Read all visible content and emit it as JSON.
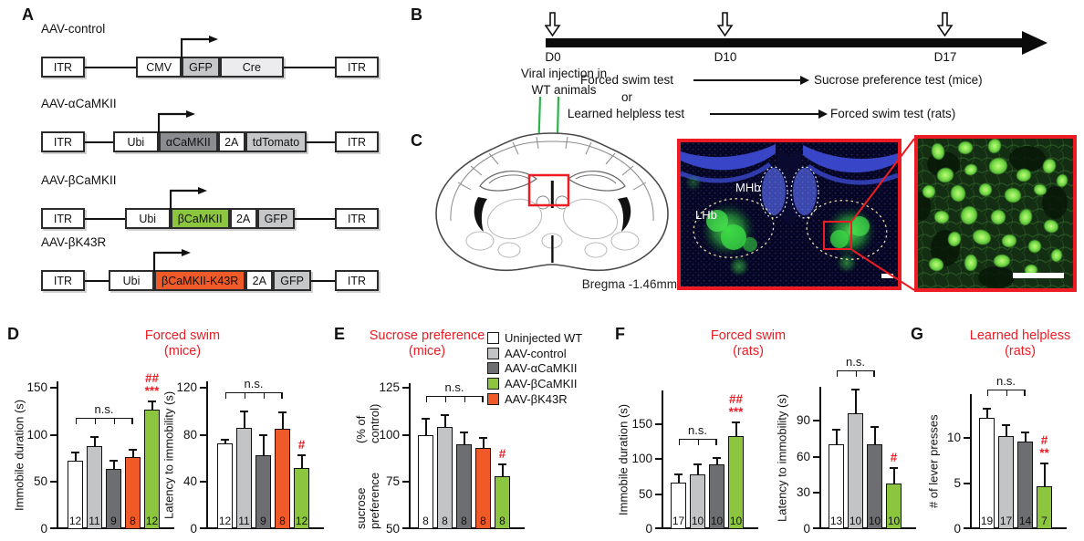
{
  "colors": {
    "white_bar": "#ffffff",
    "light_gray": "#c3c4c6",
    "dark_gray": "#6d6e71",
    "green": "#8cc63f",
    "orange": "#f05a28",
    "accent_red": "#ed1c24",
    "injection_green": "#2eb34a"
  },
  "panels": {
    "A": {
      "label": "A",
      "constructs": [
        {
          "name": "AAV-control",
          "segments": [
            {
              "label": "ITR",
              "style": "white"
            },
            {
              "gap": true
            },
            {
              "label": "CMV",
              "style": "white"
            },
            {
              "label": "GFP",
              "style": "gray",
              "gene": true
            },
            {
              "label": "Cre",
              "style": "lighter",
              "wide": true
            },
            {
              "gap": true
            },
            {
              "label": "ITR",
              "style": "white"
            }
          ]
        },
        {
          "name": "AAV-αCaMKII",
          "segments": [
            {
              "label": "ITR",
              "style": "white"
            },
            {
              "gap": true
            },
            {
              "label": "Ubi",
              "style": "white"
            },
            {
              "label": "αCaMKII",
              "style": "dark",
              "gene": true
            },
            {
              "label": "2A",
              "style": "white"
            },
            {
              "label": "tdTomato",
              "style": "gray"
            },
            {
              "gap": true
            },
            {
              "label": "ITR",
              "style": "white"
            }
          ]
        },
        {
          "name": "AAV-βCaMKII",
          "segments": [
            {
              "label": "ITR",
              "style": "white"
            },
            {
              "gap": true
            },
            {
              "label": "Ubi",
              "style": "white"
            },
            {
              "label": "βCaMKII",
              "style": "green",
              "gene": true
            },
            {
              "label": "2A",
              "style": "white"
            },
            {
              "label": "GFP",
              "style": "gray"
            },
            {
              "gap": true
            },
            {
              "label": "ITR",
              "style": "white"
            }
          ]
        },
        {
          "name": "AAV-βK43R",
          "segments": [
            {
              "label": "ITR",
              "style": "white"
            },
            {
              "gap": true
            },
            {
              "label": "Ubi",
              "style": "white"
            },
            {
              "label": "βCaMKII-K43R",
              "style": "orange",
              "gene": true
            },
            {
              "label": "2A",
              "style": "white"
            },
            {
              "label": "GFP",
              "style": "gray"
            },
            {
              "gap": true
            },
            {
              "label": "ITR",
              "style": "white"
            }
          ]
        }
      ]
    },
    "B": {
      "label": "B",
      "days": [
        "D0",
        "D10",
        "D17"
      ],
      "injection": [
        "Viral injection in",
        "WT animals"
      ],
      "or": "or",
      "flows": [
        {
          "from": "Forced swim test",
          "to": "Sucrose preference test (mice)"
        },
        {
          "from": "Learned helpless test",
          "to": "Forced swim test (rats)"
        }
      ]
    },
    "C": {
      "label": "C",
      "bregma": "Bregma -1.46mm",
      "regions": {
        "mhb": "MHb",
        "lhb": "LHb"
      }
    },
    "D": {
      "label": "D",
      "title": [
        "Forced swim",
        "(mice)"
      ]
    },
    "E": {
      "label": "E",
      "title": [
        "Sucrose preference",
        "(mice)"
      ]
    },
    "F": {
      "label": "F",
      "title": [
        "Forced swim",
        "(rats)"
      ]
    },
    "G": {
      "label": "G",
      "title": [
        "Learned helpless",
        "(rats)"
      ]
    }
  },
  "legend": {
    "items": [
      {
        "label": "Uninjected WT",
        "color": "#ffffff"
      },
      {
        "label": "AAV-control",
        "color": "#c3c4c6"
      },
      {
        "label": "AAV-αCaMKII",
        "color": "#6d6e71"
      },
      {
        "label": "AAV-βCaMKII",
        "color": "#8cc63f"
      },
      {
        "label": "AAV-βK43R",
        "color": "#f05a28"
      }
    ]
  },
  "chart_data": [
    {
      "id": "forced-swim-mice-immobile",
      "panel": "D",
      "type": "bar",
      "title": "Forced swim (mice)",
      "ylabel": [
        "Immobile duration (s)"
      ],
      "yticks": [
        0,
        50,
        100,
        150
      ],
      "ylim": [
        0,
        155
      ],
      "ybase": 0,
      "categories": [
        "Uninjected WT",
        "AAV-control",
        "AAV-αCaMKII",
        "AAV-βK43R",
        "AAV-βCaMKII"
      ],
      "values": [
        73,
        88,
        64,
        76,
        127
      ],
      "errors": [
        7,
        9,
        8,
        7,
        8
      ],
      "n": [
        12,
        11,
        9,
        8,
        12
      ],
      "bar_colors": [
        "#ffffff",
        "#c3c4c6",
        "#6d6e71",
        "#f05a28",
        "#8cc63f"
      ],
      "ns_bracket": {
        "from": 0,
        "to": 3,
        "label": "n.s."
      },
      "sig": {
        "bar": 4,
        "labels": [
          "##",
          "***"
        ]
      }
    },
    {
      "id": "forced-swim-mice-latency",
      "panel": "D",
      "type": "bar",
      "title": "Forced swim (mice)",
      "ylabel": [
        "Latency to immobility (s)"
      ],
      "yticks": [
        0,
        40,
        80,
        120
      ],
      "ylim": [
        0,
        120
      ],
      "ybase": 0,
      "categories": [
        "Uninjected WT",
        "AAV-control",
        "AAV-αCaMKII",
        "AAV-βK43R",
        "AAV-βCaMKII"
      ],
      "values": [
        73,
        86,
        63,
        85,
        52
      ],
      "errors": [
        2,
        13,
        16,
        13,
        10
      ],
      "n": [
        12,
        11,
        9,
        8,
        12
      ],
      "bar_colors": [
        "#ffffff",
        "#c3c4c6",
        "#6d6e71",
        "#f05a28",
        "#8cc63f"
      ],
      "ns_bracket": {
        "from": 0,
        "to": 3,
        "label": "n.s."
      },
      "sig": {
        "bar": 4,
        "labels": [
          "#"
        ]
      }
    },
    {
      "id": "sucrose-preference-mice",
      "panel": "E",
      "type": "bar",
      "title": "Sucrose preference (mice)",
      "ylabel": [
        "sucrose preference",
        "(% of control)"
      ],
      "yticks": [
        50,
        75,
        100,
        125
      ],
      "ylim": [
        50,
        125
      ],
      "ybase": 50,
      "categories": [
        "Uninjected WT",
        "AAV-control",
        "AAV-αCaMKII",
        "AAV-βK43R",
        "AAV-βCaMKII"
      ],
      "values": [
        100,
        104,
        95,
        93,
        78
      ],
      "errors": [
        8,
        6,
        6,
        5,
        6
      ],
      "n": [
        8,
        8,
        8,
        8,
        8
      ],
      "bar_colors": [
        "#ffffff",
        "#c3c4c6",
        "#6d6e71",
        "#f05a28",
        "#8cc63f"
      ],
      "ns_bracket": {
        "from": 0,
        "to": 3,
        "label": "n.s."
      },
      "sig": {
        "bar": 4,
        "labels": [
          "#"
        ]
      }
    },
    {
      "id": "forced-swim-rats-immobile",
      "panel": "F",
      "type": "bar",
      "title": "Forced swim (rats)",
      "ylabel": [
        "Immobile duration (s)"
      ],
      "yticks": [
        0,
        50,
        100,
        150
      ],
      "ylim": [
        0,
        175
      ],
      "ybase": 0,
      "categories": [
        "Uninjected WT",
        "AAV-control",
        "AAV-αCaMKII",
        "AAV-βCaMKII"
      ],
      "values": [
        67,
        78,
        92,
        133
      ],
      "errors": [
        10,
        13,
        9,
        18
      ],
      "n": [
        17,
        10,
        10,
        10
      ],
      "bar_colors": [
        "#ffffff",
        "#c3c4c6",
        "#6d6e71",
        "#8cc63f"
      ],
      "ns_bracket": {
        "from": 0,
        "to": 2,
        "label": "n.s."
      },
      "sig": {
        "bar": 3,
        "labels": [
          "##",
          "***"
        ]
      }
    },
    {
      "id": "forced-swim-rats-latency",
      "panel": "F",
      "type": "bar",
      "title": "Forced swim (rats)",
      "ylabel": [
        "Latency to immobility (s)"
      ],
      "yticks": [
        0,
        30,
        60,
        90
      ],
      "ylim": [
        0,
        118
      ],
      "ybase": 0,
      "categories": [
        "Uninjected WT",
        "AAV-control",
        "AAV-αCaMKII",
        "AAV-βCaMKII"
      ],
      "values": [
        70,
        96,
        70,
        38
      ],
      "errors": [
        12,
        19,
        14,
        12
      ],
      "n": [
        13,
        10,
        10,
        10
      ],
      "bar_colors": [
        "#ffffff",
        "#c3c4c6",
        "#6d6e71",
        "#8cc63f"
      ],
      "ns_bracket": {
        "from": 0,
        "to": 2,
        "label": "n.s."
      },
      "sig": {
        "bar": 3,
        "labels": [
          "#"
        ]
      }
    },
    {
      "id": "learned-helpless-rats",
      "panel": "G",
      "type": "bar",
      "title": "Learned helpless (rats)",
      "ylabel": [
        "# of lever presses"
      ],
      "yticks": [
        0,
        5,
        10
      ],
      "ylim": [
        0,
        14.8
      ],
      "ybase": 0,
      "categories": [
        "Uninjected WT",
        "AAV-control",
        "AAV-αCaMKII",
        "AAV-βCaMKII"
      ],
      "values": [
        12.2,
        10.2,
        9.6,
        4.7
      ],
      "errors": [
        0.9,
        1.1,
        0.9,
        2.4
      ],
      "n": [
        19,
        17,
        14,
        7
      ],
      "bar_colors": [
        "#ffffff",
        "#c3c4c6",
        "#6d6e71",
        "#8cc63f"
      ],
      "ns_bracket": {
        "from": 0,
        "to": 2,
        "label": "n.s."
      },
      "sig": {
        "bar": 3,
        "labels": [
          "#",
          "**"
        ]
      }
    }
  ]
}
